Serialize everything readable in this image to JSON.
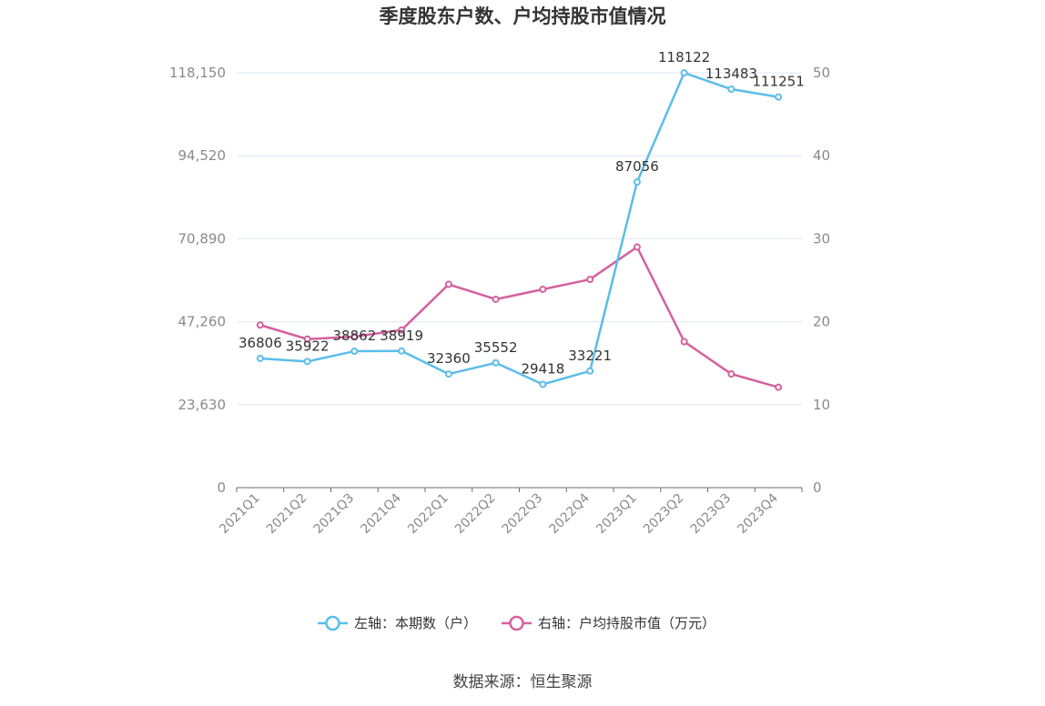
{
  "chart_data": {
    "type": "line",
    "title": "季度股东户数、户均持股市值情况",
    "categories": [
      "2021Q1",
      "2021Q2",
      "2021Q3",
      "2021Q4",
      "2022Q1",
      "2022Q2",
      "2022Q3",
      "2022Q4",
      "2023Q1",
      "2023Q2",
      "2023Q3",
      "2023Q4"
    ],
    "left_axis": {
      "ylim": [
        0,
        118150
      ],
      "ticks": [
        "0",
        "23,630",
        "47,260",
        "70,890",
        "94,520",
        "118,150"
      ]
    },
    "right_axis": {
      "ylim": [
        0,
        50
      ],
      "ticks": [
        "0",
        "10",
        "20",
        "30",
        "40",
        "50"
      ]
    },
    "series": [
      {
        "name": "左轴：本期数（户）",
        "axis": "left",
        "color": "#5bbde8",
        "values": [
          36806,
          35922,
          38862,
          38919,
          32360,
          35552,
          29418,
          33221,
          87056,
          118122,
          113483,
          111251
        ],
        "labels": [
          "36806",
          "35922",
          "38862",
          "38919",
          "32360",
          "35552",
          "29418",
          "33221",
          "87056",
          "118122",
          "113483",
          "111251"
        ]
      },
      {
        "name": "右轴：户均持股市值（万元）",
        "axis": "right",
        "color": "#d4609f",
        "values": [
          19.6,
          17.9,
          18.2,
          19.0,
          24.5,
          22.7,
          23.9,
          25.1,
          29.0,
          17.6,
          13.7,
          12.1
        ]
      }
    ],
    "grid": true,
    "legend_position": "bottom"
  },
  "source": "数据来源：恒生聚源"
}
